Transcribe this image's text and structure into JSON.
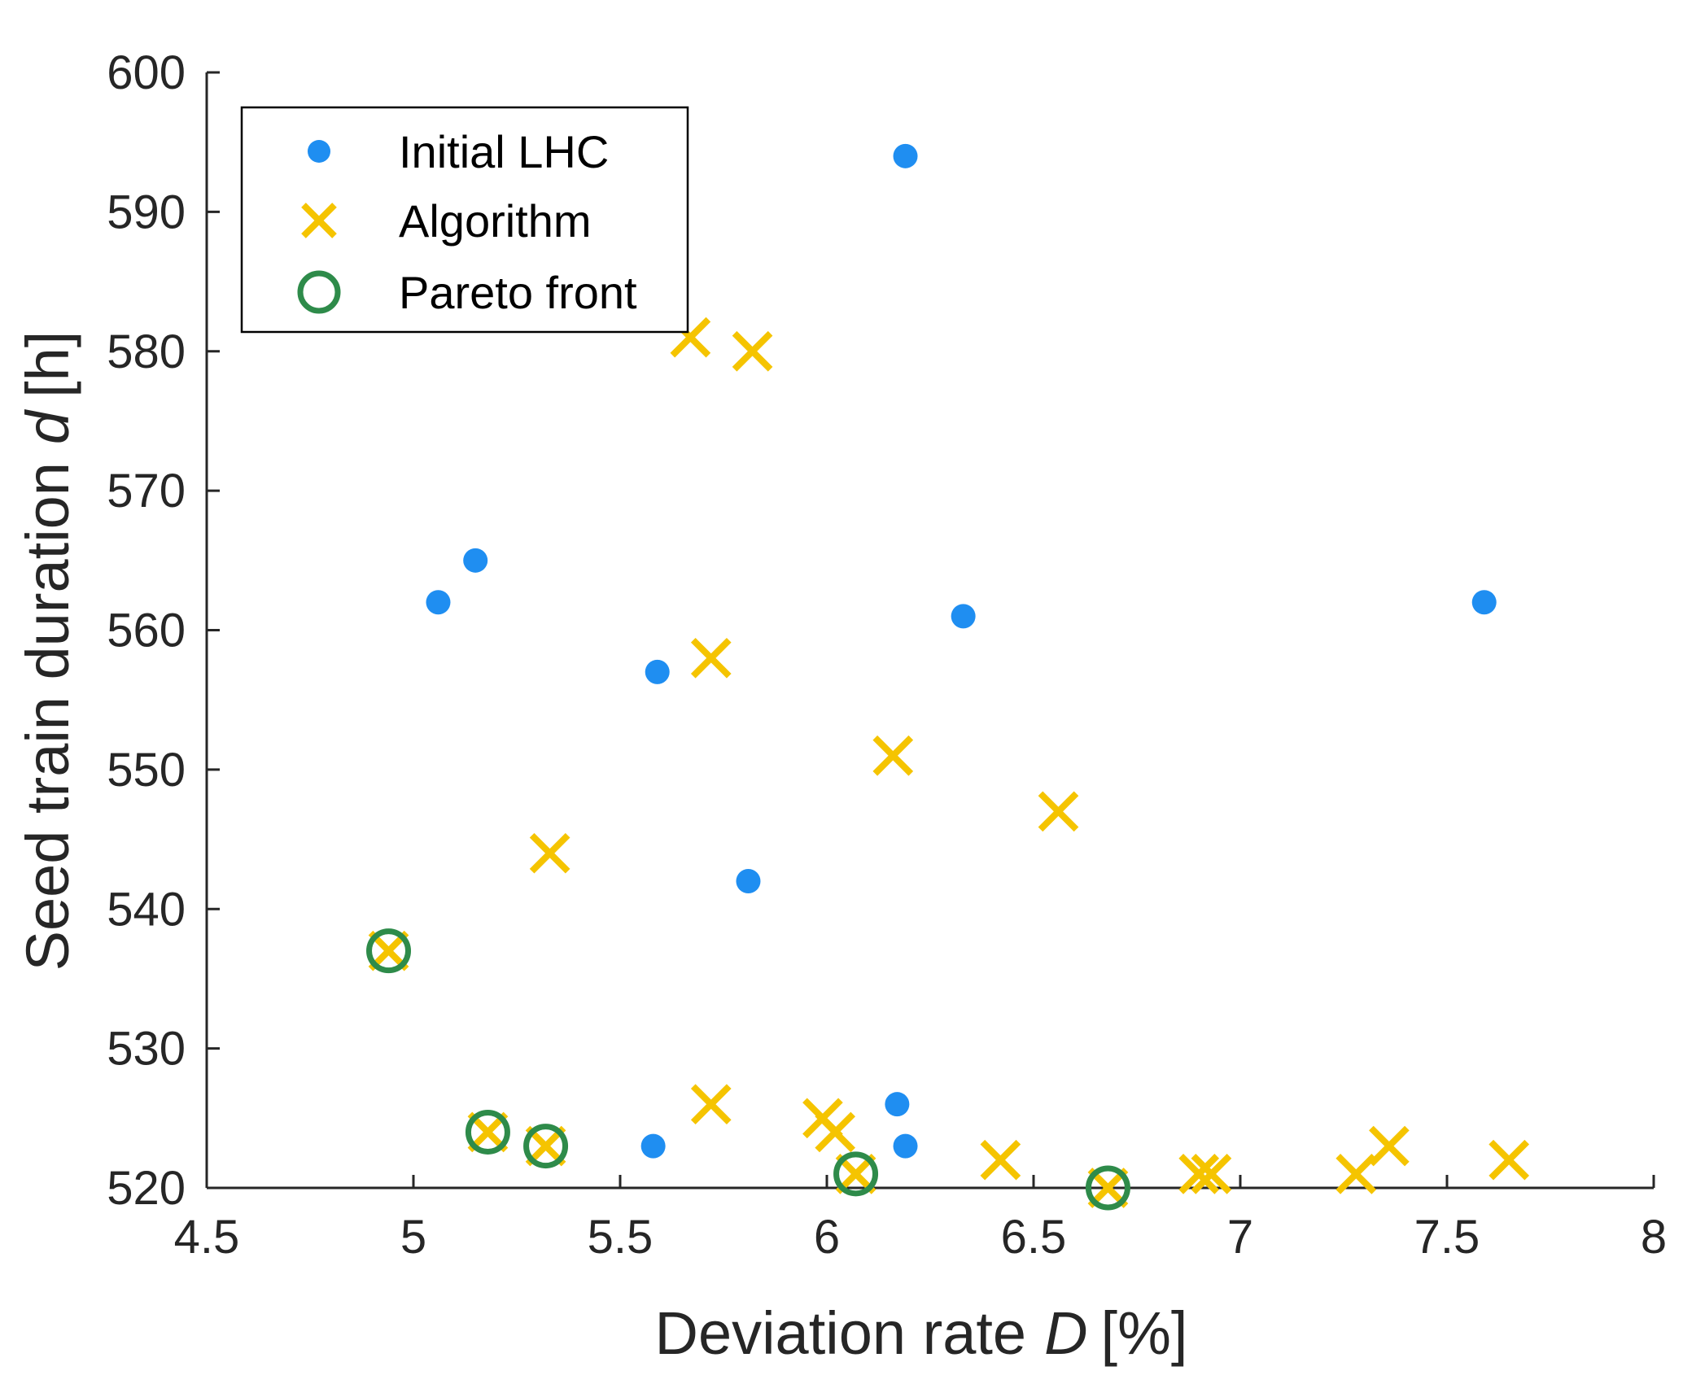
{
  "chart_data": {
    "type": "scatter",
    "xlabel": "Deviation rate",
    "xlabel_symbol": "D",
    "xlabel_unit": "[%]",
    "ylabel": "Seed train duration",
    "ylabel_symbol": "d",
    "ylabel_unit": "[h]",
    "xlim": [
      4.5,
      8
    ],
    "ylim": [
      520,
      600
    ],
    "xticks": [
      "4.5",
      "5",
      "5.5",
      "6",
      "6.5",
      "7",
      "7.5",
      "8"
    ],
    "yticks": [
      "520",
      "530",
      "540",
      "550",
      "560",
      "570",
      "580",
      "590",
      "600"
    ],
    "grid": false,
    "legend_position": "top-left",
    "series": [
      {
        "name": "Initial LHC",
        "marker": "filled-circle",
        "color": "#1f8ef1",
        "points": [
          {
            "x": 5.06,
            "y": 562
          },
          {
            "x": 5.15,
            "y": 565
          },
          {
            "x": 5.59,
            "y": 557
          },
          {
            "x": 6.19,
            "y": 594
          },
          {
            "x": 6.33,
            "y": 561
          },
          {
            "x": 5.81,
            "y": 542
          },
          {
            "x": 7.59,
            "y": 562
          },
          {
            "x": 5.58,
            "y": 523
          },
          {
            "x": 6.17,
            "y": 526
          },
          {
            "x": 6.19,
            "y": 523
          }
        ]
      },
      {
        "name": "Algorithm",
        "marker": "x",
        "color": "#f5c400",
        "points": [
          {
            "x": 5.67,
            "y": 581
          },
          {
            "x": 5.82,
            "y": 580
          },
          {
            "x": 5.72,
            "y": 558
          },
          {
            "x": 6.16,
            "y": 551
          },
          {
            "x": 6.56,
            "y": 547
          },
          {
            "x": 5.33,
            "y": 544
          },
          {
            "x": 4.94,
            "y": 537
          },
          {
            "x": 5.72,
            "y": 526
          },
          {
            "x": 5.99,
            "y": 525
          },
          {
            "x": 6.02,
            "y": 524
          },
          {
            "x": 5.18,
            "y": 524
          },
          {
            "x": 5.32,
            "y": 523
          },
          {
            "x": 6.07,
            "y": 521
          },
          {
            "x": 6.42,
            "y": 522
          },
          {
            "x": 6.68,
            "y": 520
          },
          {
            "x": 6.9,
            "y": 521
          },
          {
            "x": 6.93,
            "y": 521
          },
          {
            "x": 7.28,
            "y": 521
          },
          {
            "x": 7.36,
            "y": 523
          },
          {
            "x": 7.65,
            "y": 522
          }
        ]
      },
      {
        "name": "Pareto front",
        "marker": "open-circle",
        "color": "#2e8b4a",
        "points": [
          {
            "x": 4.94,
            "y": 537
          },
          {
            "x": 5.18,
            "y": 524
          },
          {
            "x": 5.32,
            "y": 523
          },
          {
            "x": 6.07,
            "y": 521
          },
          {
            "x": 6.68,
            "y": 520
          }
        ]
      }
    ]
  }
}
